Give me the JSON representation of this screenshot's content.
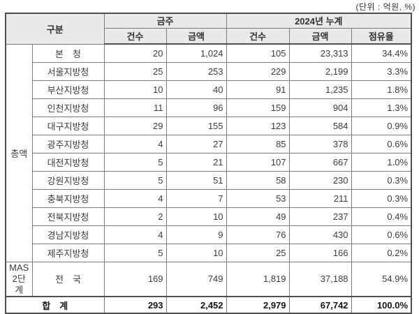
{
  "unit_note": "(단위 : 억원, %)",
  "colors": {
    "border": "#7a7a7a",
    "border_strong": "#4f4f4f",
    "header_bg": "#e9e9e9",
    "text": "#3c3c3c",
    "total_text": "#141414"
  },
  "table": {
    "header": {
      "category": "구분",
      "this_week": "금주",
      "cumulative_2024": "2024년 누계"
    },
    "sub_headers": [
      "건수",
      "금액",
      "건수",
      "금액",
      "점유율"
    ],
    "group_label": "총액",
    "rows": [
      {
        "name": "본　청",
        "cells": [
          "20",
          "1,024",
          "105",
          "23,313",
          "34.4%"
        ]
      },
      {
        "name": "서울지방청",
        "cells": [
          "25",
          "253",
          "229",
          "2,199",
          "3.3%"
        ]
      },
      {
        "name": "부산지방청",
        "cells": [
          "10",
          "40",
          "91",
          "1,235",
          "1.8%"
        ]
      },
      {
        "name": "인천지방청",
        "cells": [
          "11",
          "96",
          "159",
          "904",
          "1.3%"
        ]
      },
      {
        "name": "대구지방청",
        "cells": [
          "29",
          "155",
          "123",
          "584",
          "0.9%"
        ]
      },
      {
        "name": "광주지방청",
        "cells": [
          "4",
          "27",
          "85",
          "378",
          "0.6%"
        ]
      },
      {
        "name": "대전지방청",
        "cells": [
          "5",
          "21",
          "107",
          "667",
          "1.0%"
        ]
      },
      {
        "name": "강원지방청",
        "cells": [
          "5",
          "51",
          "58",
          "230",
          "0.3%"
        ]
      },
      {
        "name": "충북지방청",
        "cells": [
          "4",
          "7",
          "53",
          "211",
          "0.3%"
        ]
      },
      {
        "name": "전북지방청",
        "cells": [
          "2",
          "10",
          "49",
          "237",
          "0.4%"
        ]
      },
      {
        "name": "경남지방청",
        "cells": [
          "4",
          "9",
          "76",
          "430",
          "0.6%"
        ]
      },
      {
        "name": "제주지방청",
        "cells": [
          "5",
          "10",
          "25",
          "166",
          "0.2%"
        ]
      }
    ],
    "mas_row": {
      "group_line1": "MAS",
      "group_line2": "2단계",
      "name": "전　국",
      "cells": [
        "169",
        "749",
        "1,819",
        "37,188",
        "54.9%"
      ]
    },
    "total_row": {
      "label": "합　계",
      "cells": [
        "293",
        "2,452",
        "2,979",
        "67,742",
        "100.0%"
      ]
    }
  }
}
